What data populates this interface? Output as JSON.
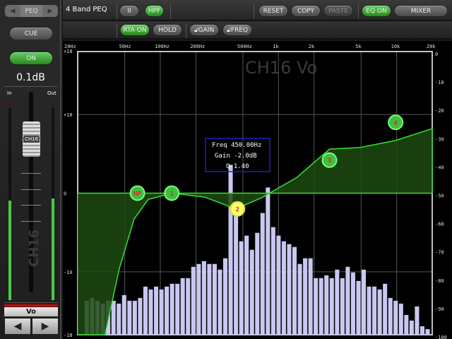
{
  "left": {
    "nav_label": "PEQ",
    "cue": "CUE",
    "on": "ON",
    "level": "0.1dB",
    "in_label": "In",
    "out_label": "Out",
    "fader_label": "CH16",
    "channel_watermark": "CH16",
    "channel_name": "Vo",
    "in_meter": 0.52,
    "out_meter": 0.53
  },
  "toolbar": {
    "title": "4 Band PEQ",
    "type_button": "II",
    "hpf": "HPF",
    "reset": "RESET",
    "copy": "COPY",
    "paste": "PASTE",
    "eq_on": "EQ ON",
    "mixer": "MIXER",
    "rta_on": "RTA ON",
    "hold": "HOLD",
    "gain_lock": "GAIN",
    "freq_lock": "FREQ"
  },
  "graph": {
    "watermark": "CH16 Vo",
    "freq_ticks": [
      {
        "f": 20,
        "label": "20Hz"
      },
      {
        "f": 50,
        "label": "50Hz"
      },
      {
        "f": 100,
        "label": "100Hz"
      },
      {
        "f": 200,
        "label": "200Hz"
      },
      {
        "f": 500,
        "label": "500Hz"
      },
      {
        "f": 1000,
        "label": "1k"
      },
      {
        "f": 2000,
        "label": "2k"
      },
      {
        "f": 5000,
        "label": "5k"
      },
      {
        "f": 10000,
        "label": "10k"
      },
      {
        "f": 20000,
        "label": "20k"
      }
    ],
    "gain_ticks": [
      {
        "v": 18,
        "label": "+18"
      },
      {
        "v": 10,
        "label": "+10"
      },
      {
        "v": 0,
        "label": "0"
      },
      {
        "v": -10,
        "label": "-10"
      },
      {
        "v": -18,
        "label": "-18"
      }
    ],
    "rta_ticks": [
      "0",
      "-10",
      "-20",
      "-30",
      "-40",
      "-50",
      "-60",
      "-70",
      "-80",
      "-90",
      "-100"
    ],
    "curve": [
      [
        20,
        -18
      ],
      [
        34,
        -18
      ],
      [
        45,
        -9.6
      ],
      [
        60,
        -3.3
      ],
      [
        79,
        -0.8
      ],
      [
        125,
        0
      ],
      [
        238,
        -0.5
      ],
      [
        436,
        -2
      ],
      [
        716,
        -0.6
      ],
      [
        1430,
        2
      ],
      [
        2700,
        5.6
      ],
      [
        4900,
        5.8
      ],
      [
        9800,
        6.7
      ],
      [
        20000,
        8.2
      ]
    ],
    "nodes": [
      {
        "label": "HP",
        "f": 64,
        "g": 0
      },
      {
        "label": "1",
        "f": 125,
        "g": 0
      },
      {
        "label": "2",
        "f": 450,
        "g": -2,
        "selected": true
      },
      {
        "label": "3",
        "f": 2700,
        "g": 4.2
      },
      {
        "label": "4",
        "f": 9800,
        "g": 9
      }
    ],
    "info": {
      "freq": "Freq  450.00Hz",
      "gain": "Gain -2.0dB",
      "q": "Q  1.40"
    },
    "rta_levels": [
      -88,
      -87,
      -88,
      -89,
      -88,
      -88,
      -89,
      -86,
      -88,
      -88,
      -87,
      -83,
      -84,
      -83,
      -84,
      -83,
      -82,
      -82,
      -80,
      -80,
      -76,
      -75,
      -74,
      -75,
      -75,
      -77,
      -73,
      -40,
      -57,
      -67,
      -65,
      -70,
      -64,
      -57,
      -48,
      -62,
      -65,
      -67,
      -68,
      -69,
      -75,
      -73,
      -73,
      -80,
      -80,
      -79,
      -80,
      -77,
      -80,
      -76,
      -78,
      -81,
      -77,
      -83,
      -83,
      -84,
      -82,
      -87,
      -88,
      -89,
      -93,
      -95,
      -90,
      -97,
      -98
    ],
    "colors": {
      "curve": "#33e033",
      "fill": "#1f4a12",
      "node": "#3fbf3f",
      "selected": "#ffff66",
      "rta": "#c8c8f0",
      "info_border": "#2020c0"
    }
  }
}
